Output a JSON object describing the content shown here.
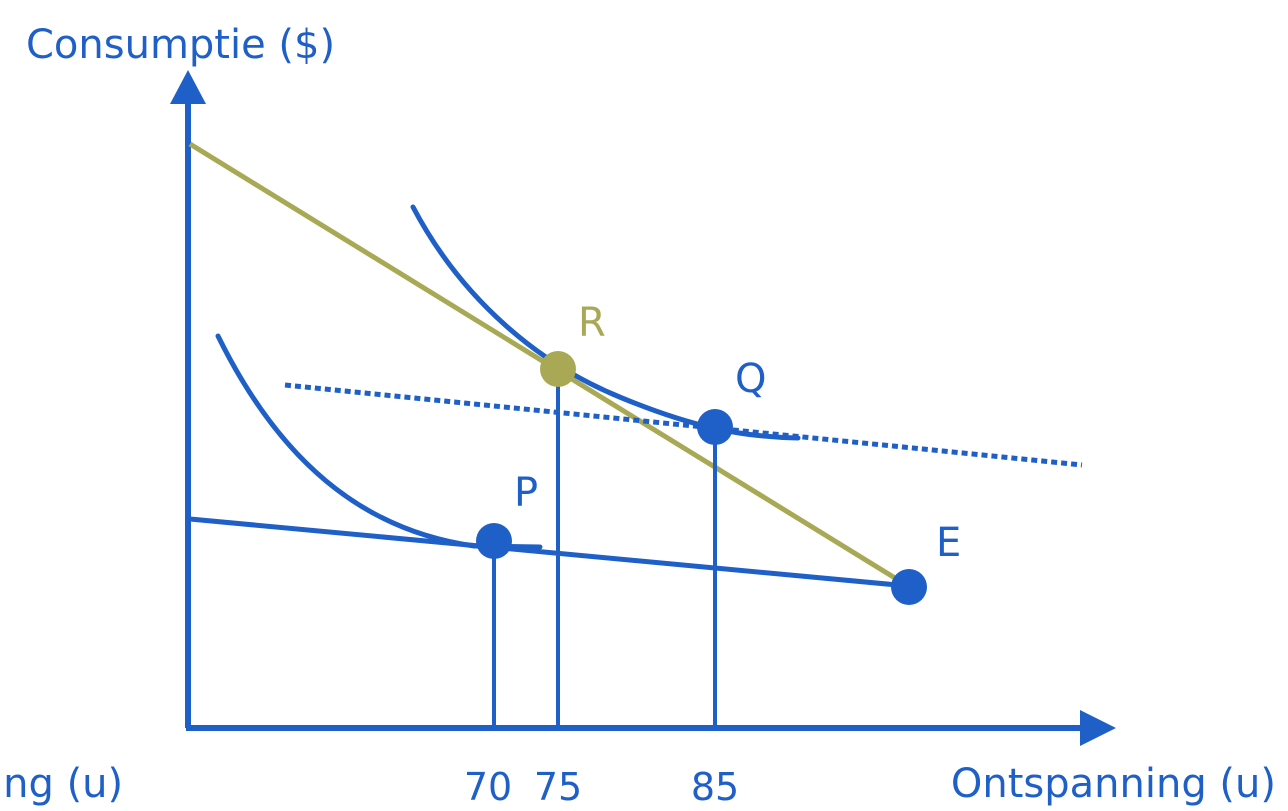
{
  "diagram": {
    "y_axis_label": "Consumptie ($)",
    "x_axis_label": "Ontspanning (u)",
    "x_axis_label_clipped": "ing (u)",
    "ticks": [
      "70",
      "75",
      "85"
    ],
    "points": {
      "P": "P",
      "Q": "Q",
      "R": "R",
      "E": "E"
    },
    "colors": {
      "blue": "#1f5fc8",
      "olive": "#a9a955"
    }
  }
}
